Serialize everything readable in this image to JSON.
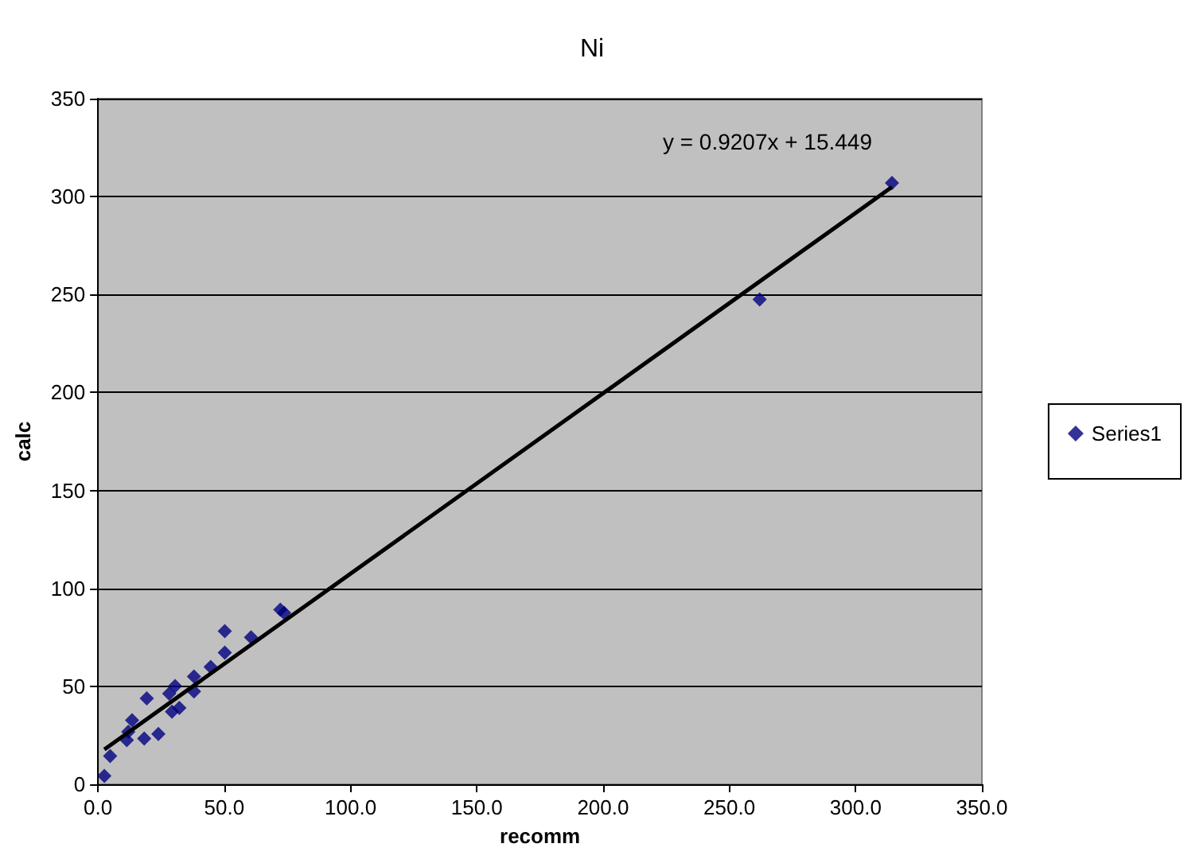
{
  "chart_data": {
    "type": "scatter",
    "title": "Ni",
    "xlabel": "recomm",
    "ylabel": "calc",
    "series": [
      {
        "name": "Series1",
        "color": "#000080",
        "marker": "diamond",
        "x": [
          2.5,
          4.8,
          11.4,
          12,
          13.5,
          18.3,
          19.3,
          23.9,
          29.3,
          28.2,
          30.5,
          32.2,
          38,
          38,
          44.6,
          50.2,
          50.2,
          60.6,
          72.2,
          73.7,
          262,
          314.4
        ],
        "values": [
          4.3,
          14.4,
          22.5,
          26.8,
          32.7,
          23.3,
          43.9,
          25.7,
          37.1,
          46.3,
          50.1,
          39,
          47.4,
          55,
          59.9,
          67.2,
          78.2,
          75,
          89.1,
          87.5,
          247.5,
          307
        ]
      },
      {
        "type": "line",
        "color": "#000000",
        "marker": "none",
        "x": [
          2.5,
          314.4
        ],
        "values": [
          17.75,
          304.9
        ]
      }
    ],
    "annotations": [
      "y = 0.9207x + 15.449"
    ],
    "xlim": [
      0,
      350
    ],
    "ylim": [
      0,
      350
    ],
    "xticks": [
      {
        "value": 0,
        "label": "0.0"
      },
      {
        "value": 50,
        "label": "50.0"
      },
      {
        "value": 100,
        "label": "100.0"
      },
      {
        "value": 150,
        "label": "150.0"
      },
      {
        "value": 200,
        "label": "200.0"
      },
      {
        "value": 250,
        "label": "250.0"
      },
      {
        "value": 300,
        "label": "300.0"
      },
      {
        "value": 350,
        "label": "350.0"
      }
    ],
    "yticks": [
      0,
      50,
      100,
      150,
      200,
      250,
      300,
      350
    ],
    "grid": "y",
    "legend": "right"
  }
}
